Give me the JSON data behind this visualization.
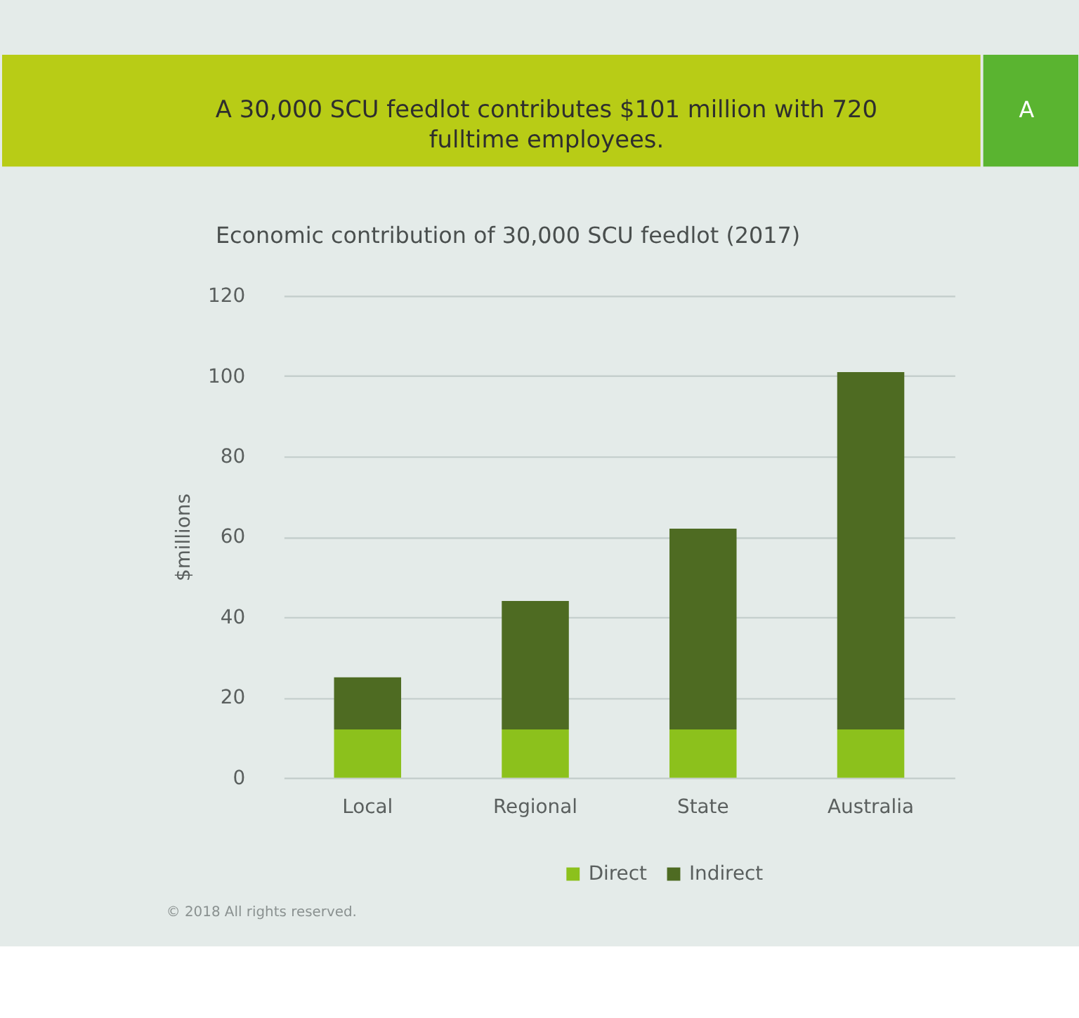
{
  "chart_data": {
    "type": "bar",
    "title": "A 30,000 SCU feedlot contributes $101 million with 720 fulltime employees.",
    "subtitle": "Economic contribution of 30,000 SCU feedlot (2017)",
    "ylabel": "$millions",
    "categories": [
      "Local",
      "Regional",
      "State",
      "Australia"
    ],
    "series": [
      {
        "name": "Direct",
        "color": "#8cc11c",
        "values": [
          12,
          12,
          12,
          12
        ]
      },
      {
        "name": "Indirect",
        "color": "#4e6b22",
        "values": [
          13,
          32,
          50,
          89
        ]
      }
    ],
    "stacked": true,
    "ylim": [
      0,
      120
    ],
    "yticks": [
      0,
      20,
      40,
      60,
      80,
      100,
      120
    ],
    "grid": "y",
    "legend": "bottom",
    "annotations": [
      "A",
      "© 2018 All rights reserved."
    ]
  }
}
